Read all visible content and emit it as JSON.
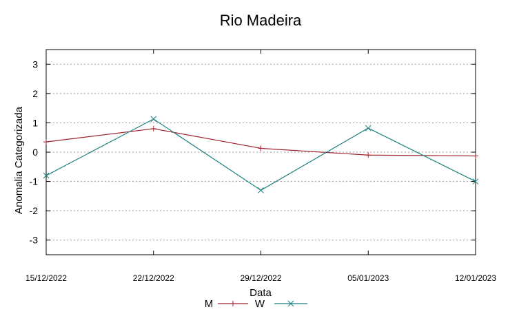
{
  "chart_data": {
    "type": "line",
    "title": "Rio Madeira",
    "xlabel": "Data",
    "ylabel": "Anomalia Categorizada",
    "x": [
      "15/12/2022",
      "22/12/2022",
      "29/12/2022",
      "05/01/2023",
      "12/01/2023"
    ],
    "ylim": [
      -3.5,
      3.5
    ],
    "yticks": [
      "3",
      "2",
      "1",
      "0",
      "-1",
      "-2",
      "-3"
    ],
    "grid": true,
    "legend_position": "bottom",
    "series": [
      {
        "name": "M",
        "color": "#a0222b",
        "marker": "plus",
        "values": [
          0.35,
          0.8,
          0.13,
          -0.1,
          -0.13
        ]
      },
      {
        "name": "W",
        "color": "#1a7f7f",
        "marker": "cross",
        "values": [
          -0.8,
          1.13,
          -1.3,
          0.82,
          -1.0
        ]
      }
    ]
  }
}
